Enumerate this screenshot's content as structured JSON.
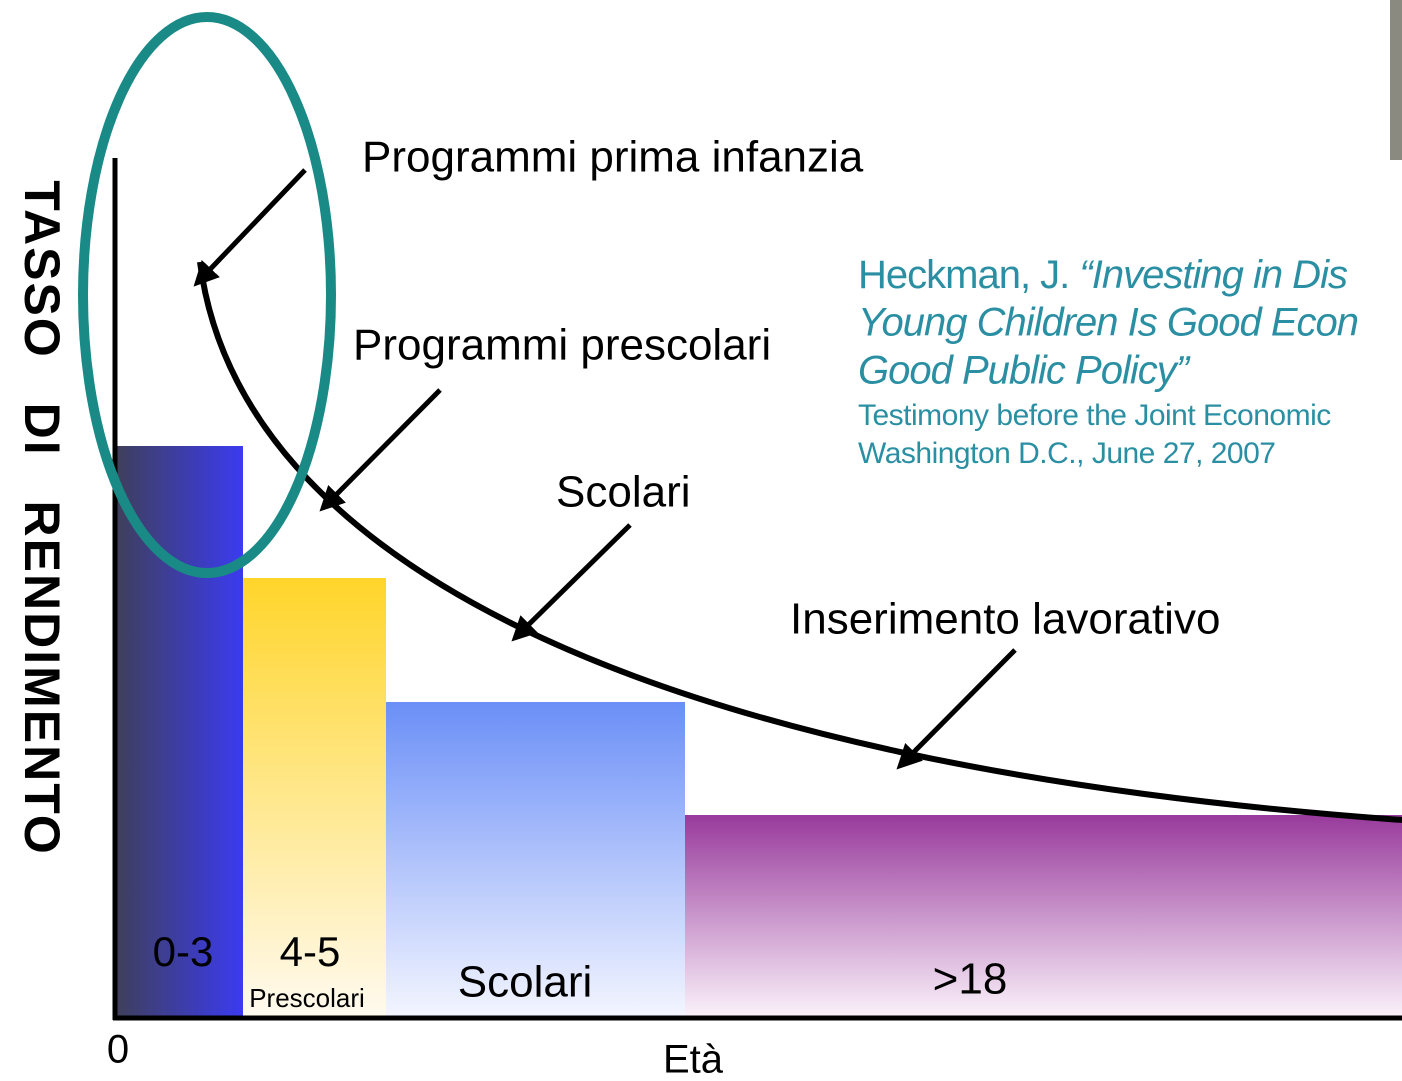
{
  "y_axis_label": "TASSO DI RENDIMENTO",
  "x_axis": {
    "origin": "0",
    "label": "Età"
  },
  "bars": [
    {
      "label": "0-3"
    },
    {
      "label": "4-5",
      "sublabel": "Prescolari"
    },
    {
      "label": "Scolari"
    },
    {
      "label": ">18"
    }
  ],
  "annotations": [
    "Programmi prima infanzia",
    "Programmi prescolari",
    "Scolari",
    "Inserimento lavorativo"
  ],
  "citation": {
    "lines": [
      "Heckman, J. ",
      "“Investing in Dis",
      "Young Children Is Good Econ",
      "Good Public Policy”",
      "Testimony before the Joint Economic",
      "Washington D.C., June 27, 2007"
    ]
  }
}
